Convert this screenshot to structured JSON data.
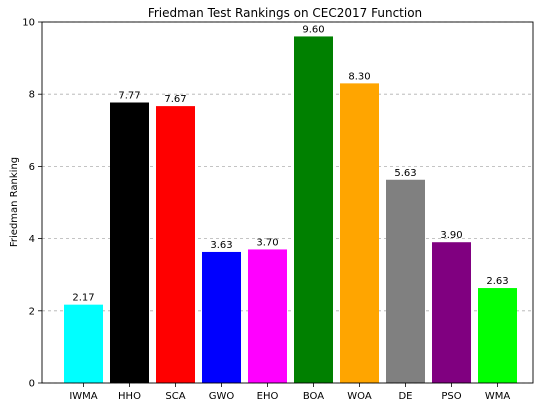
{
  "chart_data": {
    "type": "bar",
    "title": "Friedman Test Rankings on CEC2017 Function",
    "xlabel": "",
    "ylabel": "Friedman Ranking",
    "categories": [
      "IWMA",
      "HHO",
      "SCA",
      "GWO",
      "EHO",
      "BOA",
      "WOA",
      "DE",
      "PSO",
      "WMA"
    ],
    "values": [
      2.17,
      7.77,
      7.67,
      3.63,
      3.7,
      9.6,
      8.3,
      5.63,
      3.9,
      2.63
    ],
    "value_labels": [
      "2.17",
      "7.77",
      "7.67",
      "3.63",
      "3.70",
      "9.60",
      "8.30",
      "5.63",
      "3.90",
      "2.63"
    ],
    "colors": [
      "#00ffff",
      "#000000",
      "#ff0000",
      "#0000ff",
      "#ff00ff",
      "#008000",
      "#ffa500",
      "#808080",
      "#800080",
      "#00ff00"
    ],
    "ylim": [
      0,
      10
    ],
    "yticks": [
      0,
      2,
      4,
      6,
      8,
      10
    ],
    "ytick_labels": [
      "0",
      "2",
      "4",
      "6",
      "8",
      "10"
    ],
    "grid": "horizontal dashed",
    "legend": "none"
  }
}
